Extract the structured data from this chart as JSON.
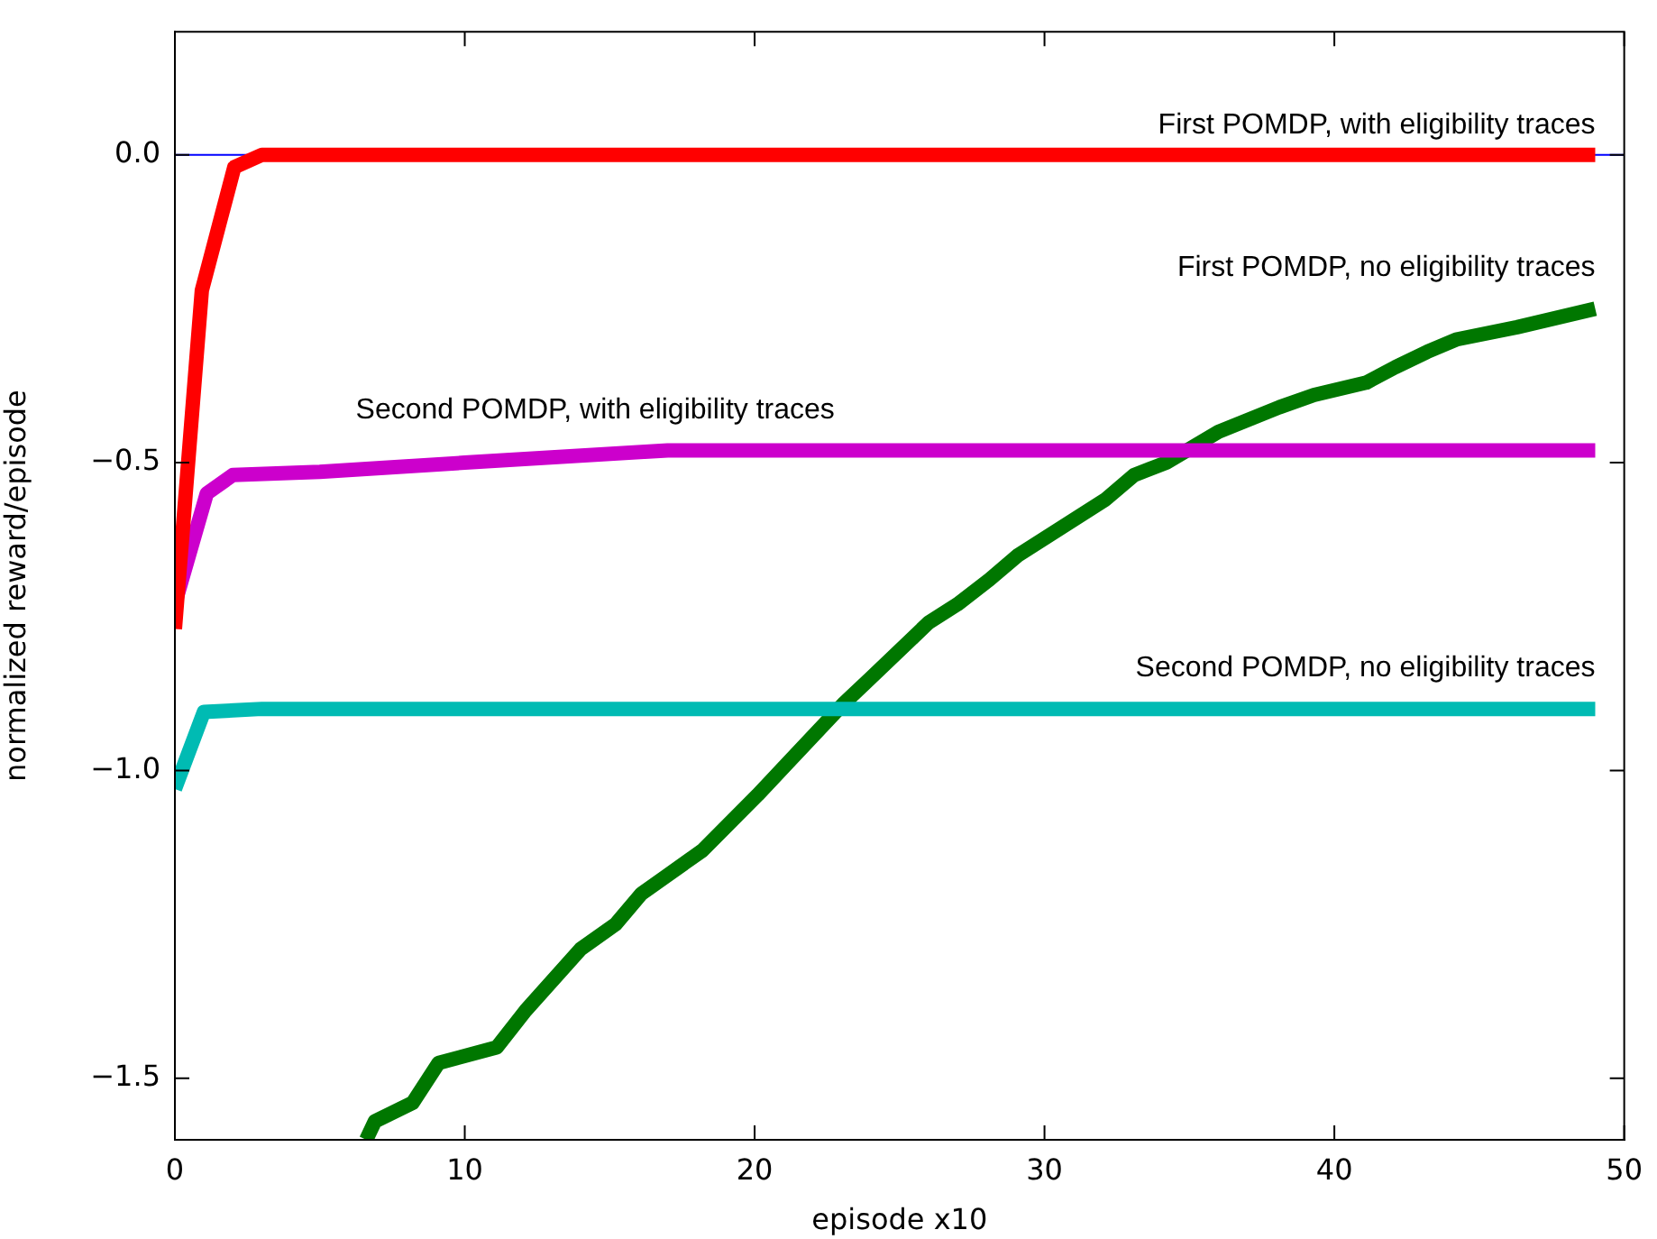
{
  "chart_data": {
    "type": "line",
    "xlabel": "episode x10",
    "ylabel": "normalized reward/episode",
    "xlim": [
      0,
      50
    ],
    "xticks": [
      0,
      10,
      20,
      30,
      40,
      50
    ],
    "ylim": [
      -1.6,
      0.2
    ],
    "yticks": [
      {
        "value": -1.5,
        "label": "−1.5"
      },
      {
        "value": -1.0,
        "label": "−1.0"
      },
      {
        "value": -0.5,
        "label": "−0.5"
      },
      {
        "value": 0,
        "label": "0.0"
      }
    ],
    "grid": false,
    "legend": false,
    "marker": "none",
    "line_style": "solid",
    "ref_lines": [
      {
        "axis": "y",
        "value": 0,
        "color": "#0000ff"
      }
    ],
    "series": [
      {
        "name": "First POMDP, with eligibility traces",
        "color": "#ff0000",
        "x": [
          0,
          0.93,
          2.05,
          3,
          49
        ],
        "values": [
          -0.77,
          -0.22,
          -0.02,
          0,
          0
        ]
      },
      {
        "name": "Second POMDP, with eligibility traces",
        "color": "#cc00cc",
        "x": [
          0,
          1.1,
          2,
          5,
          10,
          17,
          49
        ],
        "values": [
          -0.73,
          -0.55,
          -0.52,
          -0.515,
          -0.5,
          -0.48,
          -0.48
        ]
      },
      {
        "name": "Second POMDP, no eligibility traces",
        "color": "#00bbb3",
        "x": [
          0,
          1,
          3,
          49
        ],
        "values": [
          -1.03,
          -0.905,
          -0.9,
          -0.9
        ]
      },
      {
        "name": "First POMDP, no eligibility traces",
        "color": "#007700",
        "x": [
          6.6,
          6.9,
          8.2,
          9.1,
          11.1,
          12.1,
          14.0,
          15.2,
          16.1,
          17.0,
          18.2,
          20.1,
          21.1,
          23.1,
          24.0,
          26.0,
          27.0,
          28.1,
          29.1,
          31.1,
          32.1,
          33.1,
          34.2,
          36.0,
          38.1,
          39.3,
          41.1,
          42.1,
          43.2,
          44.2,
          46.3,
          49
        ],
        "values": [
          -1.6,
          -1.57,
          -1.54,
          -1.475,
          -1.45,
          -1.39,
          -1.29,
          -1.25,
          -1.2,
          -1.17,
          -1.13,
          -1.04,
          -0.99,
          -0.89,
          -0.85,
          -0.76,
          -0.73,
          -0.69,
          -0.65,
          -0.59,
          -0.56,
          -0.52,
          -0.5,
          -0.45,
          -0.41,
          -0.39,
          -0.37,
          -0.345,
          -0.32,
          -0.3,
          -0.28,
          -0.25
        ]
      }
    ]
  }
}
